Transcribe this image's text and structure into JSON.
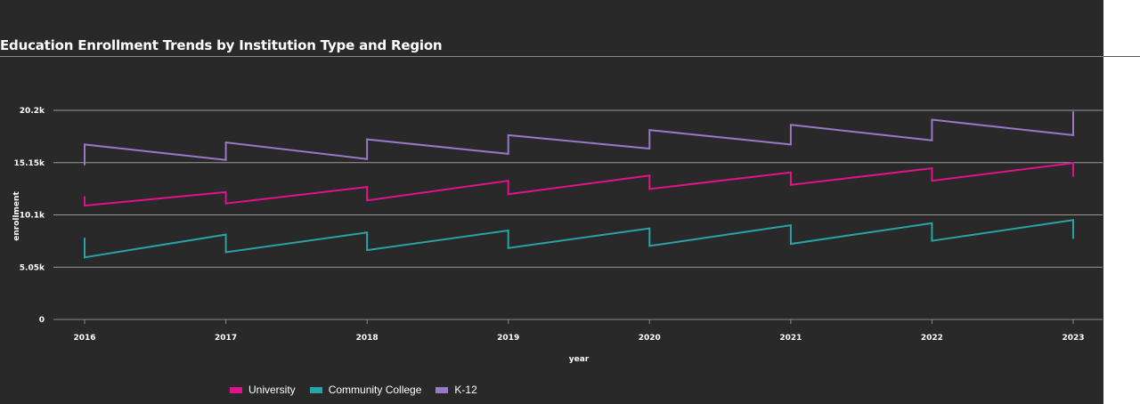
{
  "title": "Education Enrollment Trends by Institution Type and Region",
  "chart_data": {
    "type": "line",
    "title": "Education Enrollment Trends by Institution Type and Region",
    "xlabel": "year",
    "ylabel": "enrollment",
    "x_ticks": [
      "2016",
      "2017",
      "2018",
      "2019",
      "2020",
      "2021",
      "2022",
      "2023"
    ],
    "y_ticks": [
      {
        "value": 0,
        "label": "0"
      },
      {
        "value": 5050,
        "label": "5.05k"
      },
      {
        "value": 10100,
        "label": "10.1k"
      },
      {
        "value": 15150,
        "label": "15.15k"
      },
      {
        "value": 20200,
        "label": "20.2k"
      }
    ],
    "xlim": [
      2016,
      2023
    ],
    "ylim": [
      0,
      20200
    ],
    "grid": true,
    "legend_position": "bottom",
    "series": [
      {
        "name": "University",
        "color": "#e0138c",
        "points": [
          [
            2016,
            11900
          ],
          [
            2016,
            11000
          ],
          [
            2017,
            12300
          ],
          [
            2017,
            11200
          ],
          [
            2018,
            12800
          ],
          [
            2018,
            11500
          ],
          [
            2019,
            13400
          ],
          [
            2019,
            12100
          ],
          [
            2020,
            13900
          ],
          [
            2020,
            12600
          ],
          [
            2021,
            14200
          ],
          [
            2021,
            13000
          ],
          [
            2022,
            14600
          ],
          [
            2022,
            13400
          ],
          [
            2023,
            15100
          ],
          [
            2023,
            13800
          ]
        ]
      },
      {
        "name": "Community College",
        "color": "#2aa3a6",
        "points": [
          [
            2016,
            7900
          ],
          [
            2016,
            6000
          ],
          [
            2017,
            8200
          ],
          [
            2017,
            6500
          ],
          [
            2018,
            8400
          ],
          [
            2018,
            6700
          ],
          [
            2019,
            8600
          ],
          [
            2019,
            6900
          ],
          [
            2020,
            8800
          ],
          [
            2020,
            7100
          ],
          [
            2021,
            9100
          ],
          [
            2021,
            7300
          ],
          [
            2022,
            9300
          ],
          [
            2022,
            7600
          ],
          [
            2023,
            9600
          ],
          [
            2023,
            7800
          ]
        ]
      },
      {
        "name": "K-12",
        "color": "#9a78c9",
        "points": [
          [
            2016,
            14900
          ],
          [
            2016,
            16900
          ],
          [
            2017,
            15400
          ],
          [
            2017,
            17100
          ],
          [
            2018,
            15500
          ],
          [
            2018,
            17400
          ],
          [
            2019,
            16000
          ],
          [
            2019,
            17800
          ],
          [
            2020,
            16500
          ],
          [
            2020,
            18300
          ],
          [
            2021,
            16900
          ],
          [
            2021,
            18800
          ],
          [
            2022,
            17300
          ],
          [
            2022,
            19300
          ],
          [
            2023,
            17800
          ],
          [
            2023,
            20100
          ]
        ]
      }
    ]
  }
}
